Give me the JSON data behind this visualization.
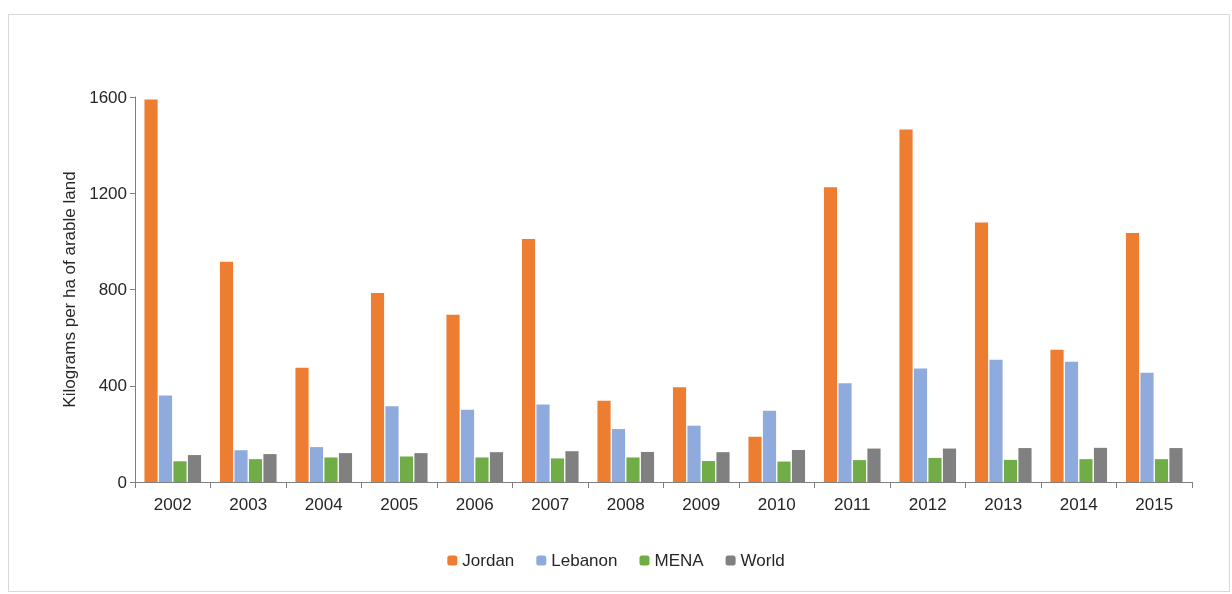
{
  "chart_data": {
    "type": "bar",
    "ylabel": "Kilograms per ha of arable land",
    "categories": [
      "2002",
      "2003",
      "2004",
      "2005",
      "2006",
      "2007",
      "2008",
      "2009",
      "2010",
      "2011",
      "2012",
      "2013",
      "2014",
      "2015"
    ],
    "series": [
      {
        "name": "Jordan",
        "color": "#ed7d31",
        "values": [
          1590,
          915,
          475,
          785,
          695,
          1010,
          338,
          394,
          188,
          1225,
          1465,
          1078,
          550,
          1035
        ]
      },
      {
        "name": "Lebanon",
        "color": "#8faadc",
        "values": [
          360,
          132,
          145,
          315,
          300,
          322,
          220,
          234,
          296,
          410,
          472,
          508,
          500,
          454
        ]
      },
      {
        "name": "MENA",
        "color": "#70ad47",
        "values": [
          86,
          95,
          102,
          106,
          102,
          98,
          102,
          87,
          85,
          91,
          100,
          92,
          95,
          95
        ]
      },
      {
        "name": "World",
        "color": "#808080",
        "values": [
          112,
          116,
          120,
          120,
          124,
          128,
          125,
          124,
          133,
          139,
          139,
          141,
          142,
          141
        ]
      }
    ],
    "ylim": [
      0,
      1600
    ],
    "yticks": [
      0,
      400,
      800,
      1200,
      1600
    ],
    "grid": false,
    "legend": "bottom"
  }
}
